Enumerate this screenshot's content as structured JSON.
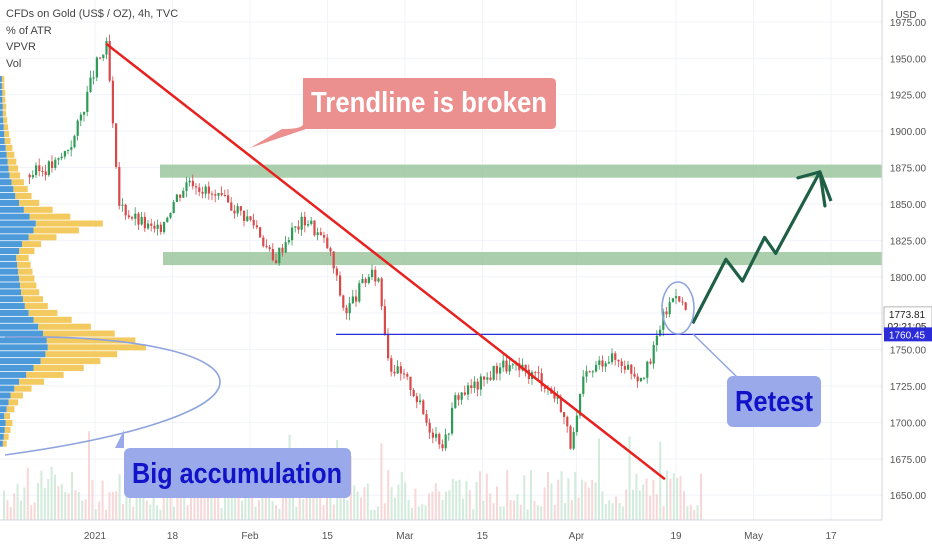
{
  "header": {
    "symbol": "CFDs on Gold (US$ / OZ), 4h, TVC",
    "indicators": [
      "% of ATR",
      "VPVR",
      "Vol"
    ]
  },
  "colors": {
    "up": "#2e9c57",
    "down": "#d8494a",
    "trendline": "#e8211f",
    "support_line": "#2b2bd8",
    "zone": "#8fbf92",
    "arrow": "#1f5f46",
    "vp_up": "#3a8fd6",
    "vp_down": "#f2c44e",
    "callout_red": "#eb8f8f",
    "callout_blue": "#99a9e9",
    "label_blue": "#1212c8"
  },
  "chart_data": {
    "type": "candlestick",
    "title": "CFDs on Gold (US$ / OZ), 4h, TVC",
    "currency": "USD",
    "ylim": [
      1633,
      1990
    ],
    "y_ticks": [
      1650,
      1675,
      1700,
      1725,
      1750,
      1775,
      1800,
      1825,
      1850,
      1875,
      1900,
      1925,
      1950,
      1975
    ],
    "y_tick_labels": [
      "1650.00",
      "1675.00",
      "1700.00",
      "1725.00",
      "1750.00",
      "1775.00",
      "1800.00",
      "1825.00",
      "1850.00",
      "1875.00",
      "1900.00",
      "1925.00",
      "1950.00",
      "1975.00"
    ],
    "x_ticks": [
      "2021",
      "18",
      "Feb",
      "15",
      "Mar",
      "15",
      "Apr",
      "19",
      "May",
      "17"
    ],
    "x_tick_dates": [
      "2021-01-04",
      "2021-01-18",
      "2021-02-01",
      "2021-02-15",
      "2021-03-01",
      "2021-03-15",
      "2021-04-01",
      "2021-04-19",
      "2021-05-03",
      "2021-05-17"
    ],
    "price_path": [
      [
        "2020-12-23",
        1870
      ],
      [
        "2020-12-28",
        1878
      ],
      [
        "2020-12-31",
        1895
      ],
      [
        "2021-01-04",
        1945
      ],
      [
        "2021-01-06",
        1958
      ],
      [
        "2021-01-08",
        1850
      ],
      [
        "2021-01-11",
        1840
      ],
      [
        "2021-01-15",
        1830
      ],
      [
        "2021-01-18",
        1852
      ],
      [
        "2021-01-21",
        1868
      ],
      [
        "2021-01-25",
        1855
      ],
      [
        "2021-01-29",
        1848
      ],
      [
        "2021-02-02",
        1835
      ],
      [
        "2021-02-05",
        1810
      ],
      [
        "2021-02-08",
        1830
      ],
      [
        "2021-02-11",
        1840
      ],
      [
        "2021-02-15",
        1820
      ],
      [
        "2021-02-18",
        1775
      ],
      [
        "2021-02-22",
        1800
      ],
      [
        "2021-02-24",
        1800
      ],
      [
        "2021-02-26",
        1740
      ],
      [
        "2021-03-02",
        1725
      ],
      [
        "2021-03-05",
        1698
      ],
      [
        "2021-03-08",
        1685
      ],
      [
        "2021-03-10",
        1718
      ],
      [
        "2021-03-12",
        1722
      ],
      [
        "2021-03-15",
        1728
      ],
      [
        "2021-03-18",
        1740
      ],
      [
        "2021-03-22",
        1735
      ],
      [
        "2021-03-25",
        1732
      ],
      [
        "2021-03-29",
        1712
      ],
      [
        "2021-03-31",
        1682
      ],
      [
        "2021-04-02",
        1728
      ],
      [
        "2021-04-06",
        1745
      ],
      [
        "2021-04-09",
        1742
      ],
      [
        "2021-04-12",
        1732
      ],
      [
        "2021-04-14",
        1738
      ],
      [
        "2021-04-16",
        1768
      ],
      [
        "2021-04-19",
        1792
      ],
      [
        "2021-04-20",
        1780
      ],
      [
        "2021-04-21",
        1776
      ]
    ],
    "last_price": "1773.81",
    "countdown": "02:21:05",
    "support_price": "1760.45",
    "resistance_zones": [
      [
        1868,
        1877
      ],
      [
        1808,
        1817
      ]
    ],
    "trendline": [
      [
        "2021-01-06",
        1960
      ],
      [
        "2021-04-17",
        1661
      ]
    ],
    "projection": [
      [
        "2021-04-22",
        1768
      ],
      [
        "2021-04-28",
        1812
      ],
      [
        "2021-05-01",
        1797
      ],
      [
        "2021-05-05",
        1827
      ],
      [
        "2021-05-07",
        1816
      ],
      [
        "2021-05-15",
        1872
      ],
      [
        "2021-05-17",
        1852
      ]
    ],
    "volume_profile": {
      "price_range": [
        1683,
        1938
      ],
      "up": [
        6,
        8,
        10,
        12,
        9,
        14,
        18,
        22,
        30,
        40,
        55,
        70,
        85,
        95,
        100,
        98,
        90,
        80,
        70,
        60,
        52,
        48,
        44,
        42,
        40,
        38,
        36,
        34,
        40,
        46,
        60,
        70,
        75,
        62,
        50,
        40,
        32,
        28,
        24,
        20,
        18,
        16,
        14,
        12,
        10,
        9,
        8,
        7,
        6,
        6,
        5,
        5,
        4,
        4
      ],
      "down": [
        8,
        10,
        12,
        14,
        12,
        16,
        20,
        26,
        36,
        52,
        78,
        105,
        125,
        150,
        205,
        185,
        150,
        110,
        80,
        60,
        48,
        42,
        38,
        34,
        32,
        30,
        28,
        26,
        32,
        40,
        58,
        95,
        140,
        85,
        60,
        42,
        34,
        30,
        26,
        22,
        20,
        18,
        16,
        14,
        12,
        10,
        9,
        8,
        7,
        7,
        6,
        6,
        5,
        5
      ]
    },
    "annotations": {
      "trendline_label": "Trendline is broken",
      "accumulation_label": "Big accumulation",
      "retest_label": "Retest"
    }
  }
}
